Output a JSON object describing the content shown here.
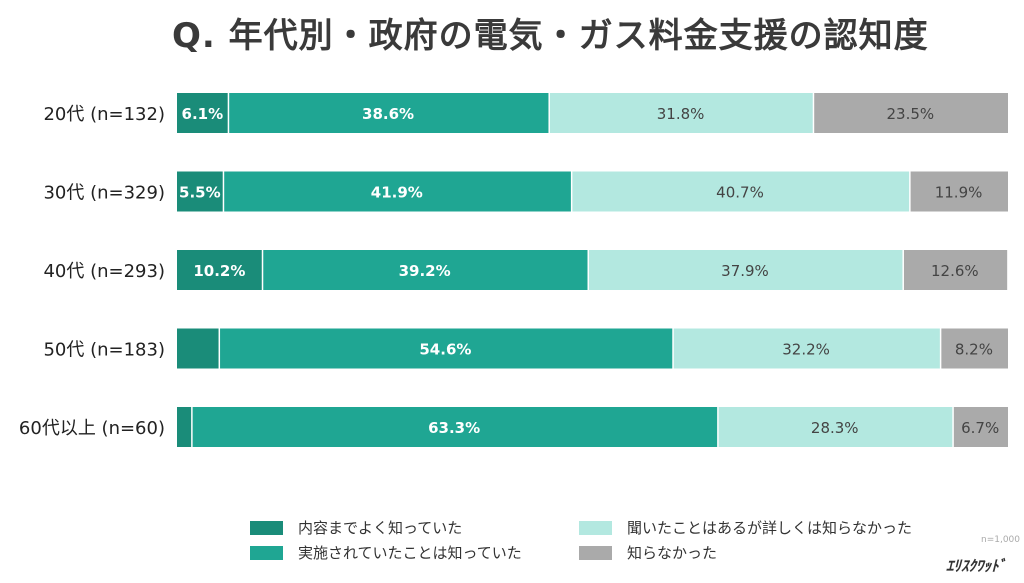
{
  "chart_data": {
    "type": "bar",
    "orientation": "horizontal",
    "stacked": true,
    "title": "Q. 年代別・政府の電気・ガス料金支援の認知度",
    "categories": [
      "20代 (n=132)",
      "30代 (n=329)",
      "40代 (n=293)",
      "50代 (n=183)",
      "60代以上 (n=60)"
    ],
    "series": [
      {
        "name": "内容までよく知っていた",
        "color": "#1a8c79",
        "values": [
          6.1,
          5.5,
          10.2,
          5.0,
          1.7
        ],
        "labels": [
          "6.1%",
          "5.5%",
          "10.2%",
          "",
          ""
        ]
      },
      {
        "name": "実施されていたことは知っていた",
        "color": "#1fa693",
        "values": [
          38.6,
          41.9,
          39.2,
          54.6,
          63.3
        ],
        "labels": [
          "38.6%",
          "41.9%",
          "39.2%",
          "54.6%",
          "63.3%"
        ]
      },
      {
        "name": "聞いたことはあるが詳しくは知らなかった",
        "color": "#b3e8e0",
        "values": [
          31.8,
          40.7,
          37.9,
          32.2,
          28.3
        ],
        "labels": [
          "31.8%",
          "40.7%",
          "37.9%",
          "32.2%",
          "28.3%"
        ]
      },
      {
        "name": "知らなかった",
        "color": "#aaaaaa",
        "values": [
          23.5,
          11.9,
          12.6,
          8.2,
          6.7
        ],
        "labels": [
          "23.5%",
          "11.9%",
          "12.6%",
          "8.2%",
          "6.7%"
        ]
      }
    ],
    "xlim": [
      0,
      100
    ],
    "grid": false,
    "legend_placement": "bottom",
    "note": "n=1,000"
  },
  "logo": "エリスクヮッド"
}
